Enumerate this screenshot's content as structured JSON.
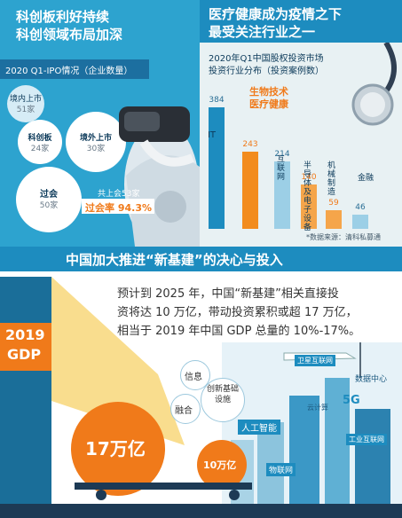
{
  "top_left": {
    "title_line1": "科创板利好持续",
    "title_line2": "科创领域布局加深",
    "ipo_heading": "2020 Q1-IPO情况（企业数量）",
    "bubbles": [
      {
        "label": "境内上市",
        "value": "51家"
      },
      {
        "label": "科创板",
        "value": "24家"
      },
      {
        "label": "境外上市",
        "value": "30家"
      },
      {
        "label": "过会",
        "value": "50家"
      }
    ],
    "total_label": "共上会53家",
    "pass_rate": "过会率 94.3%"
  },
  "top_right": {
    "title_line1": "医疗健康成为疫情之下",
    "title_line2": "最受关注行业之一",
    "subtitle_line1": "2020年Q1中国股权投资市场",
    "subtitle_line2": "投资行业分布（投资案例数）",
    "highlight_line1": "生物技术",
    "highlight_line2": "医疗健康",
    "source": "*数据来源：清科私募通",
    "chart_data": {
      "type": "bar",
      "title": "2020年Q1中国股权投资市场投资行业分布（投资案例数）",
      "categories": [
        "IT",
        "生物技术医疗健康",
        "互联网",
        "半导体及电子设备",
        "机械制造",
        "金融"
      ],
      "values": [
        384,
        243,
        214,
        140,
        59,
        46
      ],
      "ylim": [
        0,
        420
      ],
      "colors": [
        "#1d8cbf",
        "#f28c1e",
        "#9ccfe6",
        "#f5a54a",
        "#f5a54a",
        "#9ccfe6"
      ]
    },
    "cats": [
      "IT",
      "互联网",
      "半导体及电子设备",
      "机械制造",
      "金融"
    ]
  },
  "bottom": {
    "banner": "中国加大推进“新基建”的决心与投入",
    "para_line1": "预计到  2025 年，中国“新基建”相关直接投",
    "para_line2": "资将达 10 万亿，带动投资累积或超 17 万亿，",
    "para_line3": "相当于 2019 年中国 GDP 总量的 10%-17%。",
    "gdp_label_line1": "2019",
    "gdp_label_line2": "GDP",
    "big_ball": "17万亿",
    "small_ball": "10万亿",
    "bubbles": [
      "信息",
      "创新基础设施",
      "融合"
    ],
    "tech_labels": [
      "卫星互联网",
      "数据中心",
      "5G",
      "云计算",
      "人工智能",
      "工业互联网",
      "物联网"
    ],
    "colors": {
      "orange": "#f07a1a",
      "blue": "#1d8cbf",
      "yellow": "#f8d77a"
    }
  }
}
